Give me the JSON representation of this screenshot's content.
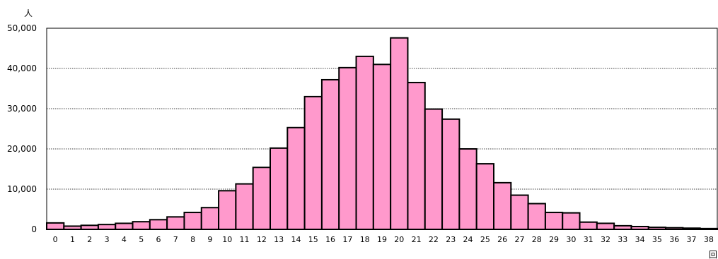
{
  "chart_data": {
    "type": "bar",
    "title": "",
    "xlabel": "回",
    "ylabel": "人",
    "ylim": [
      0,
      50000
    ],
    "y_ticks": [
      "0",
      "10,000",
      "20,000",
      "30,000",
      "40,000",
      "50,000"
    ],
    "grid": "horizontal dotted",
    "legend": "none",
    "bar_color": "#ff99cc",
    "categories": [
      "0",
      "1",
      "2",
      "3",
      "4",
      "5",
      "6",
      "7",
      "8",
      "9",
      "10",
      "11",
      "12",
      "13",
      "14",
      "15",
      "16",
      "17",
      "18",
      "19",
      "20",
      "21",
      "22",
      "23",
      "24",
      "25",
      "26",
      "27",
      "28",
      "29",
      "30",
      "31",
      "32",
      "33",
      "34",
      "35",
      "36",
      "37",
      "38"
    ],
    "values": [
      1600,
      800,
      1000,
      1200,
      1500,
      1900,
      2400,
      3100,
      4200,
      5400,
      9600,
      11300,
      15400,
      20200,
      25300,
      33000,
      37200,
      40200,
      43000,
      41000,
      47600,
      36500,
      29900,
      27400,
      20000,
      16300,
      11600,
      8500,
      6400,
      4200,
      4100,
      1800,
      1500,
      900,
      700,
      500,
      400,
      300,
      200
    ]
  }
}
